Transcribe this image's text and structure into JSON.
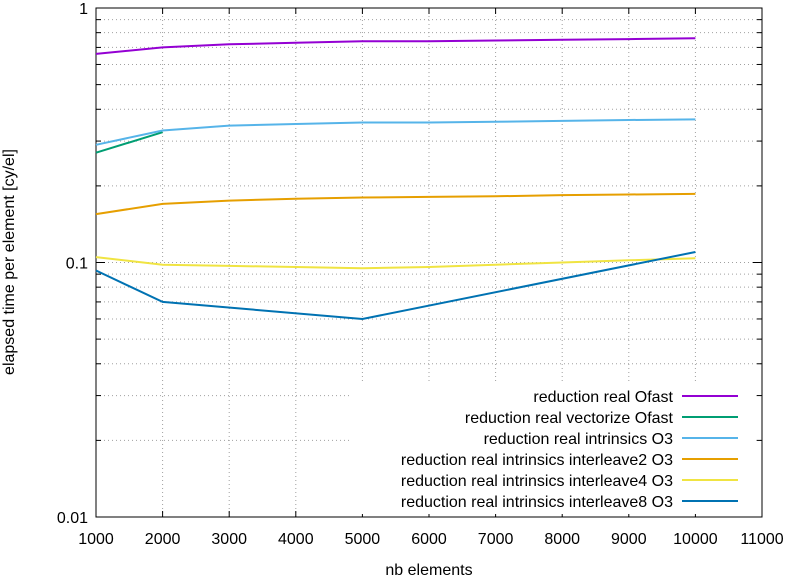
{
  "chart_data": {
    "type": "line",
    "title": "",
    "xlabel": "nb elements",
    "ylabel": "elapsed time per element [cy/el]",
    "xlim": [
      1000,
      11000
    ],
    "ylim": [
      0.01,
      1
    ],
    "yscale": "log",
    "x_ticks": [
      "1000",
      "2000",
      "3000",
      "4000",
      "5000",
      "6000",
      "7000",
      "8000",
      "9000",
      "10000",
      "11000"
    ],
    "y_ticks": [
      "0.01",
      "0.1",
      "1"
    ],
    "grid": true,
    "legend_position": "bottom-right",
    "series": [
      {
        "name": "reduction real Ofast",
        "color": "#9400d3",
        "x": [
          1000,
          2000,
          3000,
          4000,
          5000,
          6000,
          7000,
          8000,
          9000,
          10000
        ],
        "y": [
          0.66,
          0.7,
          0.72,
          0.73,
          0.74,
          0.74,
          0.745,
          0.75,
          0.755,
          0.76
        ]
      },
      {
        "name": "reduction real vectorize Ofast",
        "color": "#009e73",
        "x": [
          1000,
          2000
        ],
        "y": [
          0.27,
          0.325
        ]
      },
      {
        "name": "reduction real intrinsics O3",
        "color": "#56b4e9",
        "x": [
          1000,
          2000,
          3000,
          4000,
          5000,
          6000,
          7000,
          8000,
          9000,
          10000
        ],
        "y": [
          0.29,
          0.33,
          0.345,
          0.35,
          0.355,
          0.355,
          0.357,
          0.36,
          0.363,
          0.365
        ]
      },
      {
        "name": "reduction real intrinsics interleave2 O3",
        "color": "#e69f00",
        "x": [
          1000,
          2000,
          3000,
          4000,
          5000,
          6000,
          7000,
          8000,
          9000,
          10000
        ],
        "y": [
          0.155,
          0.17,
          0.175,
          0.178,
          0.18,
          0.181,
          0.182,
          0.184,
          0.185,
          0.186
        ]
      },
      {
        "name": "reduction real intrinsics interleave4 O3",
        "color": "#f0e442",
        "x": [
          1000,
          2000,
          3000,
          4000,
          5000,
          6000,
          7000,
          8000,
          9000,
          10000
        ],
        "y": [
          0.105,
          0.098,
          0.097,
          0.096,
          0.095,
          0.096,
          0.098,
          0.1,
          0.102,
          0.104
        ]
      },
      {
        "name": "reduction real intrinsics interleave8 O3",
        "color": "#0072b2",
        "x": [
          1000,
          2000,
          5000,
          10000
        ],
        "y": [
          0.093,
          0.07,
          0.06,
          0.11
        ]
      }
    ]
  }
}
